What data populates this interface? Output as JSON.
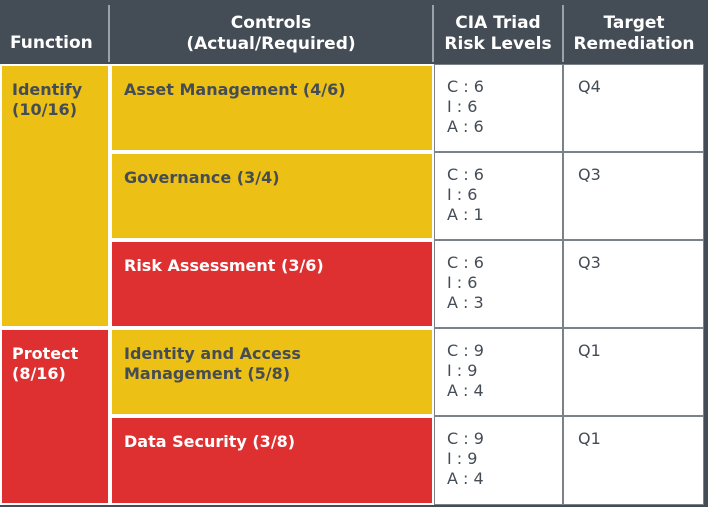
{
  "headers": {
    "function": "Function",
    "controls_line1": "Controls",
    "controls_line2": "(Actual/Required)",
    "cia_line1": "CIA Triad",
    "cia_line2": "Risk Levels",
    "target_line1": "Target",
    "target_line2": "Remediation"
  },
  "functions": [
    {
      "label_line1": "Identify",
      "label_line2": "(10/16)",
      "status": "yellow"
    },
    {
      "label_line1": "Protect",
      "label_line2": "(8/16)",
      "status": "red"
    }
  ],
  "rows": [
    {
      "control_line1": "Asset Management (4/6)",
      "control_line2": "",
      "status": "yellow",
      "c": "C : 6",
      "i": "I : 6",
      "a": "A : 6",
      "target": "Q4"
    },
    {
      "control_line1": "Governance (3/4)",
      "control_line2": "",
      "status": "yellow",
      "c": "C : 6",
      "i": "I : 6",
      "a": "A : 1",
      "target": "Q3"
    },
    {
      "control_line1": "Risk Assessment (3/6)",
      "control_line2": "",
      "status": "red",
      "c": "C : 6",
      "i": "I : 6",
      "a": "A : 3",
      "target": "Q3"
    },
    {
      "control_line1": "Identity and Access",
      "control_line2": "Management (5/8)",
      "status": "yellow",
      "c": "C : 9",
      "i": "I : 9",
      "a": "A : 4",
      "target": "Q1"
    },
    {
      "control_line1": "Data Security (3/8)",
      "control_line2": "",
      "status": "red",
      "c": "C : 9",
      "i": "I : 9",
      "a": "A : 4",
      "target": "Q1"
    }
  ],
  "colors": {
    "header_bg": "#444c56",
    "yellow": "#ecc014",
    "red": "#de3031",
    "white": "#ffffff"
  }
}
